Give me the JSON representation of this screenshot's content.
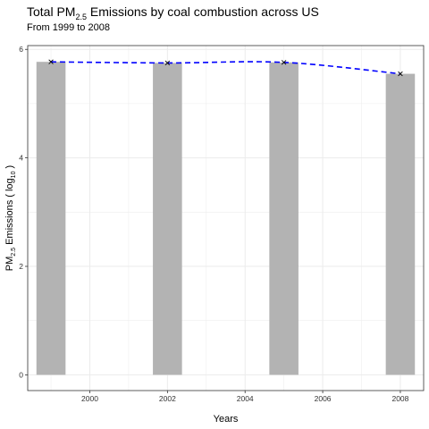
{
  "title": {
    "prefix": "Total PM",
    "subscript": "2.5",
    "suffix": " Emissions by coal combustion across US"
  },
  "subtitle": "From 1999 to 2008",
  "chart_data": {
    "type": "bar",
    "overlay": "line",
    "x": [
      1999,
      2002,
      2005,
      2008
    ],
    "values": [
      5.77,
      5.75,
      5.76,
      5.55
    ],
    "xlabel": "Years",
    "ylabel": {
      "prefix": "PM",
      "sub1": "2.5",
      "middle": " Emissions ( log",
      "sub2": "10",
      "suffix": " )"
    },
    "xticks": [
      2000,
      2002,
      2004,
      2006,
      2008
    ],
    "yticks": [
      0,
      2,
      4,
      6
    ],
    "xlim": [
      1998.4,
      2008.6
    ],
    "ylim": [
      -0.29,
      6.07
    ],
    "grid": true,
    "colors": {
      "bar": "#b3b3b3",
      "line": "#0000ff",
      "marker": "#000000",
      "grid": "#ebebeb",
      "border": "#333333"
    }
  }
}
